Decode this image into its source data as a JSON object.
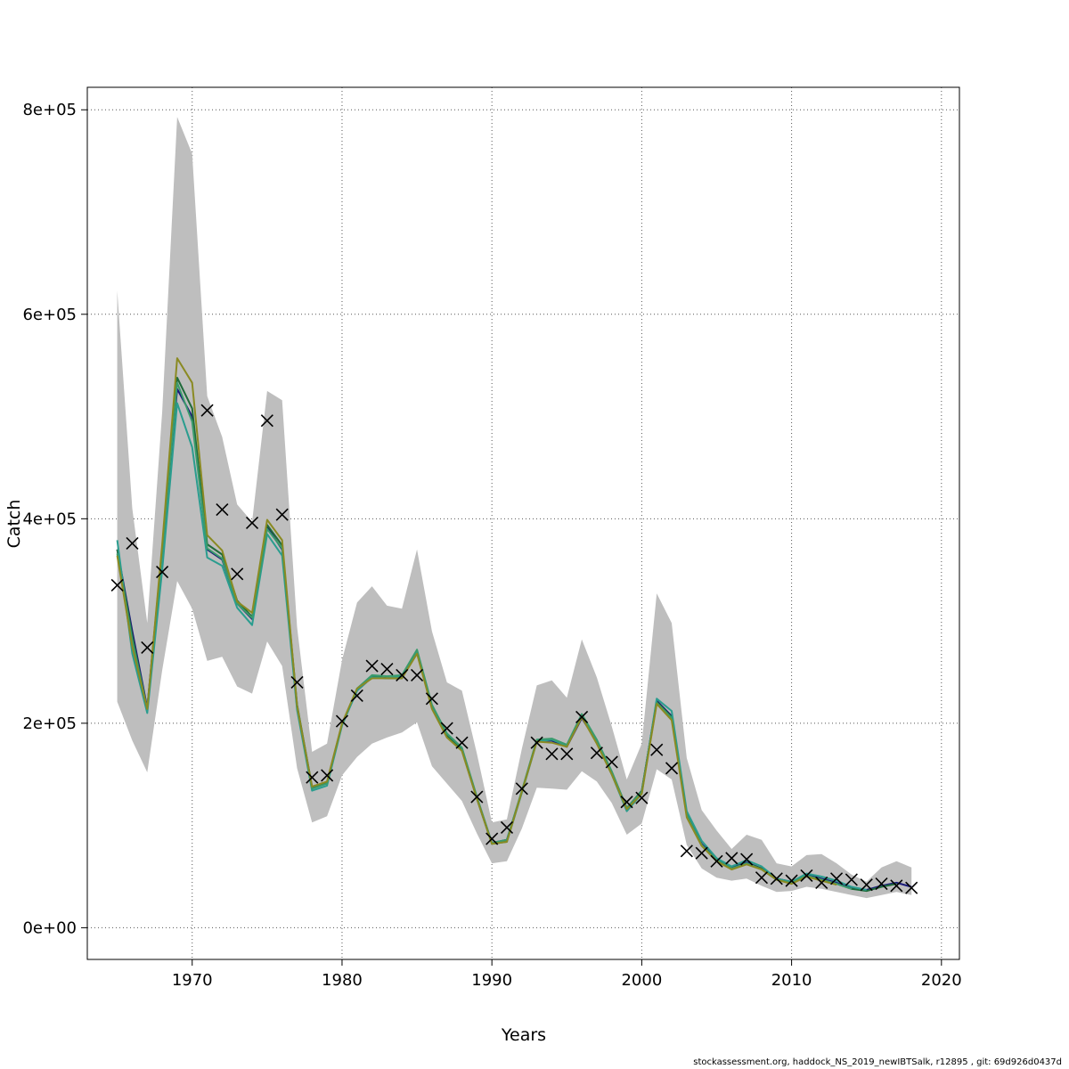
{
  "footer": "stockassessment.org, haddock_NS_2019_newIBTSalk, r12895 , git: 69d926d0437d",
  "chart_data": {
    "type": "line",
    "xlabel": "Years",
    "ylabel": "Catch",
    "xlim": [
      1963,
      2021.2
    ],
    "ylim": [
      -31000,
      822000
    ],
    "xticks": [
      1970,
      1980,
      1990,
      2000,
      2010,
      2020
    ],
    "yticks": [
      0,
      200000,
      400000,
      600000,
      800000
    ],
    "ytick_labels": [
      "0e+00",
      "2e+05",
      "4e+05",
      "6e+05",
      "8e+05"
    ],
    "grid": true,
    "band_color": "#bebebe",
    "years": [
      1965,
      1966,
      1967,
      1968,
      1969,
      1970,
      1971,
      1972,
      1973,
      1974,
      1975,
      1976,
      1977,
      1978,
      1979,
      1980,
      1981,
      1982,
      1983,
      1984,
      1985,
      1986,
      1987,
      1988,
      1989,
      1990,
      1991,
      1992,
      1993,
      1994,
      1995,
      1996,
      1997,
      1998,
      1999,
      2000,
      2001,
      2002,
      2003,
      2004,
      2005,
      2006,
      2007,
      2008,
      2009,
      2010,
      2011,
      2012,
      2013,
      2014,
      2015,
      2016,
      2017,
      2018
    ],
    "band_upper": [
      623000,
      410000,
      298000,
      505000,
      793000,
      757000,
      520000,
      480000,
      414000,
      397000,
      525000,
      516000,
      294000,
      172000,
      180000,
      262000,
      318000,
      334000,
      315000,
      312000,
      370000,
      290000,
      240000,
      232000,
      170000,
      103000,
      106000,
      175000,
      237000,
      242000,
      225000,
      282000,
      245000,
      197000,
      145000,
      180000,
      327000,
      298000,
      166000,
      115000,
      95000,
      77000,
      91000,
      86000,
      63000,
      60000,
      71000,
      72000,
      63000,
      52000,
      45000,
      59000,
      65000,
      59000
    ],
    "band_lower": [
      221000,
      183000,
      152000,
      252000,
      339000,
      312000,
      261000,
      265000,
      236000,
      229000,
      280000,
      256000,
      156000,
      103000,
      109000,
      149000,
      167000,
      180000,
      186000,
      191000,
      201000,
      158000,
      141000,
      124000,
      92000,
      63000,
      65000,
      97000,
      137000,
      136000,
      135000,
      153000,
      143000,
      122000,
      91000,
      102000,
      155000,
      145000,
      81000,
      58000,
      49000,
      46000,
      48000,
      41000,
      35000,
      36000,
      40000,
      38000,
      35000,
      32000,
      29000,
      32000,
      35000,
      32000
    ],
    "observed": [
      335000,
      376000,
      274000,
      348000,
      null,
      null,
      506000,
      409000,
      346000,
      396000,
      496000,
      404000,
      240000,
      147000,
      149000,
      202000,
      227000,
      256000,
      253000,
      247000,
      247000,
      224000,
      195000,
      181000,
      128000,
      87000,
      98000,
      136000,
      181000,
      170000,
      170000,
      206000,
      171000,
      162000,
      123000,
      127000,
      174000,
      156000,
      75000,
      73000,
      65000,
      68000,
      67000,
      49000,
      48000,
      46000,
      51000,
      44000,
      48000,
      47000,
      42000,
      43000,
      41000,
      39000
    ],
    "series": [
      {
        "color": "#1a1a7a",
        "values": [
          370000,
          290000,
          215000,
          370000,
          527000,
          500000,
          370000,
          360000,
          317000,
          302000,
          392000,
          370000,
          215000,
          137000,
          142000,
          199000,
          232000,
          245000,
          244000,
          245000,
          270000,
          215000,
          188000,
          175000,
          127000,
          83000,
          86000,
          133000,
          183000,
          183000,
          177000,
          205000,
          182000,
          152000,
          117000,
          133000,
          222000,
          207000,
          112000,
          82000,
          67000,
          59000,
          64000,
          58000,
          48000,
          45000,
          52000,
          48000,
          44000,
          39000,
          37000,
          41000,
          44000,
          40000
        ]
      },
      {
        "color": "#1f6b3a",
        "values": [
          370000,
          285000,
          213000,
          370000,
          538000,
          508000,
          375000,
          365000,
          320000,
          304000,
          394000,
          374000,
          218000,
          138000,
          142000,
          199000,
          233000,
          246000,
          244000,
          244000,
          270000,
          215000,
          188000,
          174000,
          126000,
          82000,
          85000,
          133000,
          183000,
          184000,
          178000,
          207000,
          183000,
          152000,
          117000,
          134000,
          221000,
          206000,
          111000,
          81000,
          66000,
          58000,
          63000,
          58000,
          47000,
          44000,
          51000,
          47000,
          43000,
          38000,
          36000,
          40000,
          43000,
          null
        ]
      },
      {
        "color": "#2a9d8f",
        "values": [
          379000,
          268000,
          210000,
          350000,
          513000,
          470000,
          362000,
          354000,
          313000,
          296000,
          385000,
          364000,
          213000,
          134000,
          139000,
          198000,
          232000,
          245000,
          244000,
          246000,
          271000,
          217000,
          190000,
          176000,
          127000,
          82000,
          84000,
          132000,
          182000,
          184000,
          178000,
          208000,
          182000,
          150000,
          114000,
          131000,
          224000,
          212000,
          114000,
          85000,
          68000,
          60000,
          66000,
          60000,
          48000,
          45000,
          53000,
          50000,
          46000,
          40000,
          37000,
          null,
          null,
          null
        ]
      },
      {
        "color": "#3a9b6c",
        "values": [
          366000,
          281000,
          214000,
          368000,
          533000,
          495000,
          371000,
          361000,
          317000,
          303000,
          390000,
          371000,
          216000,
          136000,
          141000,
          199000,
          234000,
          247000,
          246000,
          247000,
          272000,
          218000,
          190000,
          176000,
          128000,
          83000,
          86000,
          134000,
          184000,
          185000,
          179000,
          209000,
          184000,
          153000,
          117000,
          133000,
          220000,
          205000,
          110000,
          81000,
          66000,
          58000,
          63000,
          57000,
          47000,
          44000,
          51000,
          47000,
          43000,
          38000,
          null,
          null,
          null,
          null
        ]
      },
      {
        "color": "#8a8a22",
        "values": [
          364000,
          275000,
          214000,
          375000,
          557000,
          533000,
          384000,
          369000,
          319000,
          308000,
          399000,
          379000,
          217000,
          138000,
          143000,
          200000,
          234000,
          244000,
          244000,
          244000,
          268000,
          214000,
          186000,
          173000,
          126000,
          82000,
          84000,
          133000,
          182000,
          181000,
          177000,
          206000,
          180000,
          150000,
          116000,
          131000,
          219000,
          203000,
          108000,
          80000,
          65000,
          57000,
          62000,
          57000,
          47000,
          43000,
          50000,
          46000,
          42000,
          null,
          null,
          null,
          null,
          null
        ]
      }
    ]
  }
}
